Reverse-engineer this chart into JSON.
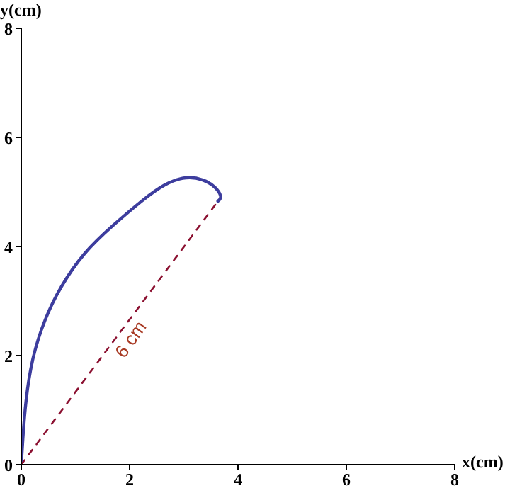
{
  "chart_data": {
    "type": "line",
    "xlabel": "x(cm)",
    "ylabel": "y(cm)",
    "series": [
      {
        "color": "#3d3d9e",
        "x": [
          0,
          0.03,
          0.09,
          0.22,
          0.44,
          0.74,
          1.17,
          1.7,
          2.22,
          2.65,
          3.04,
          3.35,
          3.57,
          3.68,
          3.63
        ],
        "values": [
          0,
          0.48,
          1.18,
          1.96,
          2.65,
          3.26,
          3.87,
          4.39,
          4.83,
          5.13,
          5.26,
          5.22,
          5.09,
          4.92,
          4.83
        ]
      },
      {
        "color": "#8b1030",
        "line_style": "dashed",
        "x": [
          0,
          3.63
        ],
        "values": [
          0,
          4.83
        ]
      }
    ],
    "annotations": [
      "6 cm"
    ],
    "xlim": [
      0,
      8
    ],
    "ylim": [
      0,
      8
    ],
    "xticks": [
      0,
      2,
      4,
      6,
      8
    ],
    "yticks": [
      0,
      2,
      4,
      6,
      8
    ],
    "grid": false,
    "marker": "none"
  }
}
